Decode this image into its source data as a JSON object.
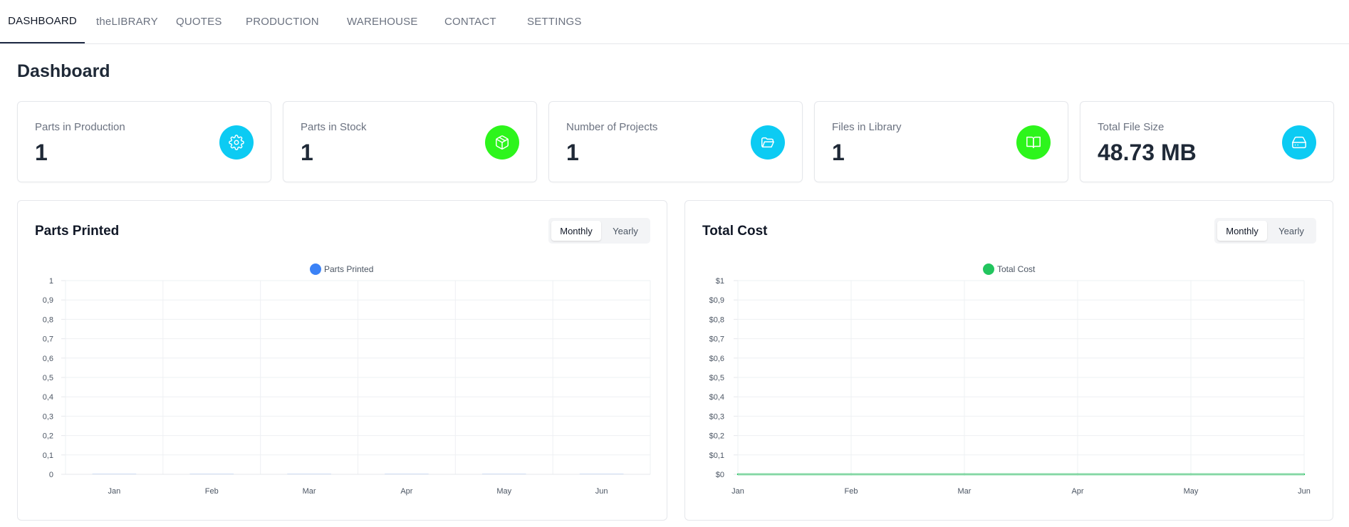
{
  "nav": {
    "items": [
      {
        "label": "DASHBOARD",
        "active": true
      },
      {
        "label": "theLIBRARY",
        "active": false
      },
      {
        "label": "QUOTES",
        "active": false
      },
      {
        "label": "PRODUCTION",
        "active": false
      },
      {
        "label": "WAREHOUSE",
        "active": false
      },
      {
        "label": "CONTACT",
        "active": false
      },
      {
        "label": "SETTINGS",
        "active": false
      }
    ]
  },
  "page": {
    "title": "Dashboard"
  },
  "stats": [
    {
      "label": "Parts in Production",
      "value": "1",
      "icon": "gear-icon",
      "color": "#0ccbf3"
    },
    {
      "label": "Parts in Stock",
      "value": "1",
      "icon": "box-icon",
      "color": "#2df51c"
    },
    {
      "label": "Number of Projects",
      "value": "1",
      "icon": "folder-open-icon",
      "color": "#0ccbf3"
    },
    {
      "label": "Files in Library",
      "value": "1",
      "icon": "book-icon",
      "color": "#2df51c"
    },
    {
      "label": "Total File Size",
      "value": "48.73 MB",
      "icon": "hard-drive-icon",
      "color": "#0ccbf3"
    }
  ],
  "charts": {
    "parts": {
      "title": "Parts Printed",
      "toggle": {
        "monthly": "Monthly",
        "yearly": "Yearly",
        "active": "Monthly"
      }
    },
    "cost": {
      "title": "Total Cost",
      "toggle": {
        "monthly": "Monthly",
        "yearly": "Yearly",
        "active": "Monthly"
      }
    }
  },
  "chart_data": [
    {
      "type": "bar",
      "categories": [
        "Jan",
        "Feb",
        "Mar",
        "Apr",
        "May",
        "Jun"
      ],
      "series": [
        {
          "name": "Parts Printed",
          "values": [
            0,
            0,
            0,
            0,
            0,
            0
          ],
          "color": "#3b82f6"
        }
      ],
      "ylim": [
        0,
        1
      ],
      "yticks": [
        "0",
        "0,1",
        "0,2",
        "0,3",
        "0,4",
        "0,5",
        "0,6",
        "0,7",
        "0,8",
        "0,9",
        "1"
      ],
      "grid": true,
      "legend": "top-center"
    },
    {
      "type": "line",
      "categories": [
        "Jan",
        "Feb",
        "Mar",
        "Apr",
        "May",
        "Jun"
      ],
      "series": [
        {
          "name": "Total Cost",
          "values": [
            0,
            0,
            0,
            0,
            0,
            0
          ],
          "color": "#22c55e"
        }
      ],
      "ylim": [
        0,
        1
      ],
      "yticks": [
        "$0",
        "$0,1",
        "$0,2",
        "$0,3",
        "$0,4",
        "$0,5",
        "$0,6",
        "$0,7",
        "$0,8",
        "$0,9",
        "$1"
      ],
      "grid": true,
      "legend": "top-center"
    }
  ]
}
